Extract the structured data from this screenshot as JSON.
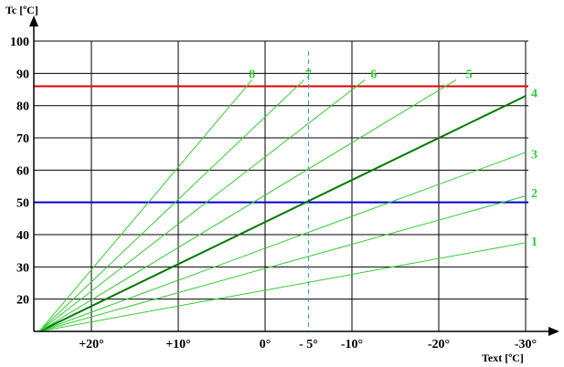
{
  "chart_data": {
    "type": "line",
    "ylabel": "Tc [ºC]",
    "xlabel": "Text [ºC]",
    "x_axis_reversed": true,
    "xlim": [
      26,
      -30
    ],
    "ylim": [
      10,
      100
    ],
    "y_ticks": [
      {
        "value": 100,
        "label": "100"
      },
      {
        "value": 90,
        "label": "90"
      },
      {
        "value": 80,
        "label": "80"
      },
      {
        "value": 70,
        "label": "70"
      },
      {
        "value": 60,
        "label": "60"
      },
      {
        "value": 50,
        "label": "50"
      },
      {
        "value": 40,
        "label": "40"
      },
      {
        "value": 30,
        "label": "30"
      },
      {
        "value": 20,
        "label": "20"
      }
    ],
    "x_ticks": [
      {
        "value": 20,
        "label": "+20°"
      },
      {
        "value": 10,
        "label": "+10°"
      },
      {
        "value": 0,
        "label": "0°"
      },
      {
        "value": -5,
        "label": "- 5°"
      },
      {
        "value": -10,
        "label": "-10°"
      },
      {
        "value": -20,
        "label": "-20°"
      },
      {
        "value": -30,
        "label": "-30°"
      }
    ],
    "origin": {
      "x": 26,
      "y": 10
    },
    "grid": true,
    "series": [
      {
        "name": "1",
        "x": [
          26,
          -30
        ],
        "y": [
          10,
          37.5
        ],
        "color": "#33cc33",
        "width": 1
      },
      {
        "name": "2",
        "x": [
          26,
          -30
        ],
        "y": [
          10,
          52
        ],
        "color": "#33cc33",
        "width": 1
      },
      {
        "name": "3",
        "x": [
          26,
          -30
        ],
        "y": [
          10,
          65.5
        ],
        "color": "#33cc33",
        "width": 1
      },
      {
        "name": "4",
        "x": [
          26,
          -30
        ],
        "y": [
          10,
          83
        ],
        "color": "#007a00",
        "width": 2
      },
      {
        "name": "5",
        "x": [
          26,
          -22
        ],
        "y": [
          10,
          88
        ],
        "color": "#33cc33",
        "width": 1
      },
      {
        "name": "6",
        "x": [
          26,
          -11.5
        ],
        "y": [
          10,
          88
        ],
        "color": "#33cc33",
        "width": 1
      },
      {
        "name": "7",
        "x": [
          26,
          -4.5
        ],
        "y": [
          10,
          88
        ],
        "color": "#33cc33",
        "width": 1
      },
      {
        "name": "8",
        "x": [
          26,
          1.5
        ],
        "y": [
          10,
          88
        ],
        "color": "#33cc33",
        "width": 1
      }
    ],
    "reference_lines": [
      {
        "orientation": "horizontal",
        "value": 86,
        "color": "#e00000"
      },
      {
        "orientation": "horizontal",
        "value": 50,
        "color": "#0000cc"
      },
      {
        "orientation": "vertical",
        "value": -5,
        "color": "#3399ff",
        "style": "dashed"
      }
    ],
    "curve_labels": [
      {
        "text": "1",
        "x": -31,
        "y": 38
      },
      {
        "text": "2",
        "x": -31,
        "y": 53
      },
      {
        "text": "3",
        "x": -31,
        "y": 65
      },
      {
        "text": "4",
        "x": -31,
        "y": 84
      },
      {
        "text": "5",
        "x": -23.5,
        "y": 90
      },
      {
        "text": "6",
        "x": -12.5,
        "y": 90
      },
      {
        "text": "7",
        "x": -5,
        "y": 90
      },
      {
        "text": "8",
        "x": 1.5,
        "y": 90
      }
    ]
  }
}
